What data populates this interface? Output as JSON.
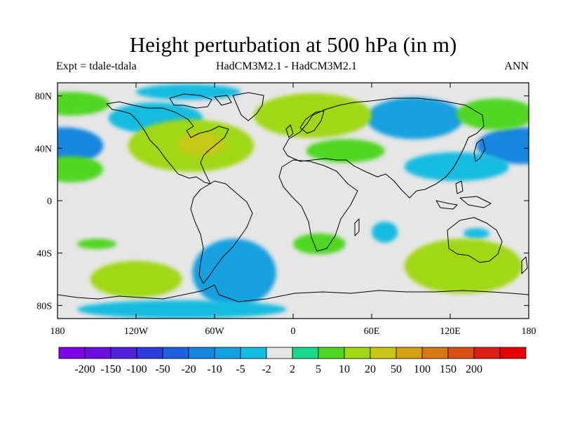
{
  "title": "Height perturbation at 500 hPa (in m)",
  "left_subtitle": "Expt = tdale-tdala",
  "center_subtitle": "HadCM3M2.1 - HadCM3M2.1",
  "right_subtitle": "ANN",
  "x_axis": {
    "ticks": [
      -180,
      -120,
      -60,
      0,
      60,
      120,
      180
    ],
    "labels": [
      "180",
      "120W",
      "60W",
      "0",
      "60E",
      "120E",
      "180"
    ]
  },
  "y_axis": {
    "ticks": [
      80,
      40,
      0,
      -40,
      -80
    ],
    "labels": [
      "80N",
      "40N",
      "0",
      "40S",
      "80S"
    ]
  },
  "extent": {
    "lon": [
      -180,
      180
    ],
    "lat": [
      -90,
      90
    ]
  },
  "colorbar": {
    "colors": [
      "#7d00e6",
      "#6a0fe0",
      "#5022d8",
      "#2d3ddc",
      "#1e5fdc",
      "#1486e0",
      "#14a0e0",
      "#14bce0",
      "#e6e6e6",
      "#19d98c",
      "#50d722",
      "#a0d814",
      "#c8c814",
      "#d6a014",
      "#d67814",
      "#d65014",
      "#dc1e14",
      "#e60000"
    ],
    "labels": [
      "-200",
      "-150",
      "-100",
      "-50",
      "-20",
      "-10",
      "-5",
      "-2",
      "2",
      "5",
      "10",
      "20",
      "50",
      "100",
      "150",
      "200"
    ]
  },
  "colors": {
    "background": "#e6e6e6",
    "coast": "#000000"
  },
  "anomalies": [
    {
      "lon": -175,
      "lat": 42,
      "rx": 30,
      "ry": 14,
      "value": -20
    },
    {
      "lon": 175,
      "lat": 42,
      "rx": 35,
      "ry": 14,
      "value": -20
    },
    {
      "lon": -105,
      "lat": 63,
      "rx": 36,
      "ry": 12,
      "value": -5
    },
    {
      "lon": -80,
      "lat": 83,
      "rx": 40,
      "ry": 6,
      "value": -5
    },
    {
      "lon": 93,
      "lat": 63,
      "rx": 37,
      "ry": 16,
      "value": -10
    },
    {
      "lon": 125,
      "lat": 26,
      "rx": 40,
      "ry": 11,
      "value": -5
    },
    {
      "lon": 140,
      "lat": -25,
      "rx": 10,
      "ry": 4,
      "value": -5
    },
    {
      "lon": 70,
      "lat": -24,
      "rx": 10,
      "ry": 8,
      "value": -5
    },
    {
      "lon": -45,
      "lat": -55,
      "rx": 32,
      "ry": 26,
      "value": -10
    },
    {
      "lon": 155,
      "lat": 66,
      "rx": 30,
      "ry": 12,
      "value": 5
    },
    {
      "lon": -78,
      "lat": 42,
      "rx": 48,
      "ry": 20,
      "value": 10
    },
    {
      "lon": -70,
      "lat": 43,
      "rx": 18,
      "ry": 9,
      "value": 20
    },
    {
      "lon": -170,
      "lat": 74,
      "rx": 30,
      "ry": 9,
      "value": 5
    },
    {
      "lon": -170,
      "lat": 24,
      "rx": 25,
      "ry": 10,
      "value": 5
    },
    {
      "lon": 15,
      "lat": 65,
      "rx": 45,
      "ry": 17,
      "value": 10
    },
    {
      "lon": 40,
      "lat": 38,
      "rx": 30,
      "ry": 9,
      "value": 5
    },
    {
      "lon": 20,
      "lat": -33,
      "rx": 20,
      "ry": 8,
      "value": 5
    },
    {
      "lon": 130,
      "lat": -50,
      "rx": 45,
      "ry": 21,
      "value": 10
    },
    {
      "lon": -120,
      "lat": -60,
      "rx": 35,
      "ry": 14,
      "value": 10
    },
    {
      "lon": -150,
      "lat": -33,
      "rx": 15,
      "ry": 4,
      "value": 5
    },
    {
      "lon": -85,
      "lat": -83,
      "rx": 80,
      "ry": 7,
      "value": -5
    }
  ]
}
